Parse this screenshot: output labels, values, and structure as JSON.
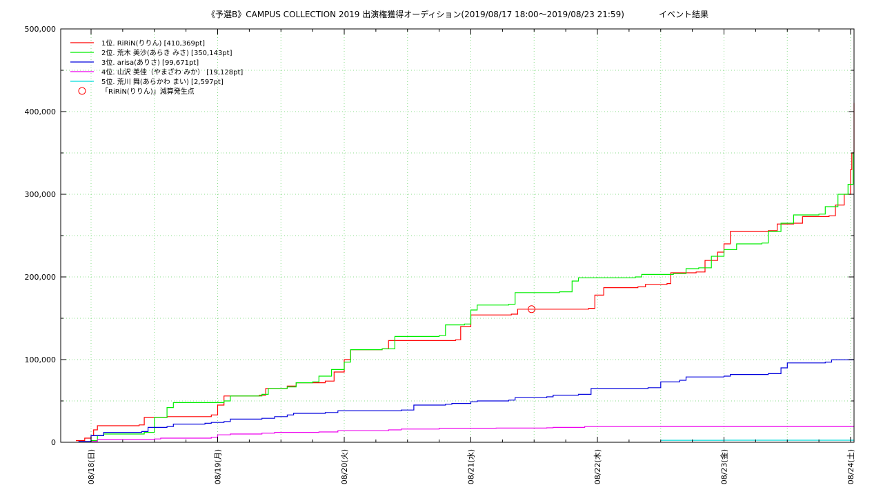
{
  "chart_data": {
    "type": "line",
    "title": "《予選B》CAMPUS COLLECTION 2019 出演権獲得オーディション(2019/08/17 18:00〜2019/08/23 21:59)",
    "title_suffix": "イベント結果",
    "ylim": [
      0,
      500000
    ],
    "y_ticks": [
      "0",
      "100,000",
      "200,000",
      "300,000",
      "400,000",
      "500,000"
    ],
    "x_ticks": [
      "08/18(日)",
      "08/19(月)",
      "08/20(火)",
      "08/21(水)",
      "08/22(木)",
      "08/23(金)",
      "08/24(土)"
    ],
    "grid": true,
    "legend_position": "top-left",
    "series": [
      {
        "name": "1位. RiRiN(りりん) [410,369pt]",
        "color": "#ff0000",
        "points": [
          [
            -0.12,
            2000
          ],
          [
            -0.05,
            5000
          ],
          [
            0.0,
            8000
          ],
          [
            0.02,
            15000
          ],
          [
            0.05,
            20000
          ],
          [
            0.38,
            21000
          ],
          [
            0.42,
            30000
          ],
          [
            0.6,
            31000
          ],
          [
            0.95,
            33000
          ],
          [
            1.0,
            45000
          ],
          [
            1.05,
            56000
          ],
          [
            1.33,
            57000
          ],
          [
            1.38,
            65000
          ],
          [
            1.55,
            68000
          ],
          [
            1.62,
            72000
          ],
          [
            1.85,
            74000
          ],
          [
            1.92,
            85000
          ],
          [
            2.0,
            100000
          ],
          [
            2.05,
            112000
          ],
          [
            2.3,
            113000
          ],
          [
            2.35,
            123000
          ],
          [
            2.88,
            124000
          ],
          [
            2.92,
            140000
          ],
          [
            3.0,
            154000
          ],
          [
            3.32,
            155000
          ],
          [
            3.37,
            161000
          ],
          [
            3.93,
            162000
          ],
          [
            3.98,
            178000
          ],
          [
            4.05,
            187000
          ],
          [
            4.32,
            188000
          ],
          [
            4.38,
            191000
          ],
          [
            4.55,
            192000
          ],
          [
            4.58,
            205000
          ],
          [
            4.78,
            206000
          ],
          [
            4.85,
            220000
          ],
          [
            4.95,
            230000
          ],
          [
            5.0,
            240000
          ],
          [
            5.05,
            255000
          ],
          [
            5.35,
            256000
          ],
          [
            5.42,
            264000
          ],
          [
            5.55,
            265000
          ],
          [
            5.62,
            273000
          ],
          [
            5.83,
            274000
          ],
          [
            5.88,
            287000
          ],
          [
            5.95,
            300000
          ],
          [
            6.0,
            330000
          ],
          [
            6.01,
            350000
          ],
          [
            6.05,
            410369
          ],
          [
            6.1,
            410369
          ]
        ]
      },
      {
        "name": "2位. 荒木 美沙(あらき みさ) [350,143pt]",
        "color": "#00ee00",
        "points": [
          [
            0.0,
            2000
          ],
          [
            0.05,
            8000
          ],
          [
            0.1,
            10000
          ],
          [
            0.42,
            12000
          ],
          [
            0.5,
            30000
          ],
          [
            0.6,
            42000
          ],
          [
            0.65,
            48000
          ],
          [
            1.05,
            50000
          ],
          [
            1.1,
            56000
          ],
          [
            1.35,
            58000
          ],
          [
            1.4,
            65000
          ],
          [
            1.55,
            67000
          ],
          [
            1.62,
            72000
          ],
          [
            1.75,
            73000
          ],
          [
            1.8,
            80000
          ],
          [
            1.9,
            88000
          ],
          [
            2.0,
            97000
          ],
          [
            2.05,
            112000
          ],
          [
            2.3,
            113000
          ],
          [
            2.4,
            128000
          ],
          [
            2.75,
            129000
          ],
          [
            2.8,
            142000
          ],
          [
            2.95,
            143000
          ],
          [
            3.0,
            160000
          ],
          [
            3.05,
            166000
          ],
          [
            3.3,
            167000
          ],
          [
            3.35,
            181000
          ],
          [
            3.7,
            182000
          ],
          [
            3.8,
            195000
          ],
          [
            3.85,
            199000
          ],
          [
            4.3,
            200000
          ],
          [
            4.35,
            203000
          ],
          [
            4.6,
            204000
          ],
          [
            4.7,
            210000
          ],
          [
            4.8,
            211000
          ],
          [
            4.9,
            225000
          ],
          [
            5.0,
            233000
          ],
          [
            5.1,
            240000
          ],
          [
            5.3,
            241000
          ],
          [
            5.35,
            255000
          ],
          [
            5.45,
            265000
          ],
          [
            5.55,
            275000
          ],
          [
            5.75,
            276000
          ],
          [
            5.8,
            285000
          ],
          [
            5.9,
            300000
          ],
          [
            5.98,
            312000
          ],
          [
            6.02,
            350143
          ],
          [
            6.1,
            350143
          ]
        ]
      },
      {
        "name": "3位. arisa(ありさ) [99,671pt]",
        "color": "#0000dd",
        "points": [
          [
            -0.1,
            1000
          ],
          [
            0.0,
            8000
          ],
          [
            0.1,
            12000
          ],
          [
            0.4,
            13000
          ],
          [
            0.45,
            18000
          ],
          [
            0.6,
            19000
          ],
          [
            0.65,
            22000
          ],
          [
            0.9,
            23000
          ],
          [
            0.95,
            24000
          ],
          [
            1.05,
            25000
          ],
          [
            1.1,
            28000
          ],
          [
            1.35,
            29000
          ],
          [
            1.45,
            31000
          ],
          [
            1.55,
            33000
          ],
          [
            1.6,
            35000
          ],
          [
            1.85,
            36000
          ],
          [
            1.95,
            38000
          ],
          [
            2.45,
            39000
          ],
          [
            2.55,
            45000
          ],
          [
            2.8,
            46000
          ],
          [
            2.85,
            47000
          ],
          [
            3.0,
            49000
          ],
          [
            3.05,
            50000
          ],
          [
            3.3,
            51000
          ],
          [
            3.35,
            54000
          ],
          [
            3.6,
            55000
          ],
          [
            3.65,
            57000
          ],
          [
            3.85,
            58000
          ],
          [
            3.95,
            65000
          ],
          [
            4.4,
            66000
          ],
          [
            4.5,
            73000
          ],
          [
            4.65,
            75000
          ],
          [
            4.7,
            79000
          ],
          [
            5.0,
            80000
          ],
          [
            5.05,
            82000
          ],
          [
            5.35,
            83000
          ],
          [
            5.45,
            90000
          ],
          [
            5.5,
            96000
          ],
          [
            5.8,
            97000
          ],
          [
            5.85,
            99671
          ],
          [
            6.1,
            99671
          ]
        ]
      },
      {
        "name": "4位. 山沢 美佳（やまざわ みか） [19,128pt]",
        "color": "#ee00ee",
        "points": [
          [
            0.0,
            1000
          ],
          [
            0.05,
            3000
          ],
          [
            0.5,
            4000
          ],
          [
            0.55,
            5000
          ],
          [
            0.95,
            6000
          ],
          [
            1.0,
            9000
          ],
          [
            1.1,
            10000
          ],
          [
            1.35,
            11000
          ],
          [
            1.45,
            12000
          ],
          [
            1.8,
            12500
          ],
          [
            1.95,
            14000
          ],
          [
            2.35,
            15000
          ],
          [
            2.45,
            16000
          ],
          [
            2.75,
            17000
          ],
          [
            3.2,
            17200
          ],
          [
            3.6,
            17500
          ],
          [
            3.65,
            18000
          ],
          [
            3.9,
            19000
          ],
          [
            4.5,
            19100
          ],
          [
            6.1,
            19128
          ]
        ]
      },
      {
        "name": "5位. 荒川 舞(あらかわ まい) [2,597pt]",
        "color": "#00dddd",
        "points": [
          [
            4.5,
            2400
          ],
          [
            5.0,
            2500
          ],
          [
            6.1,
            2597
          ]
        ]
      }
    ],
    "annotation": {
      "name": "「RiRiN(りりん)」減算発生点",
      "color": "#ff0000",
      "x": 3.48,
      "y": 161000
    }
  }
}
